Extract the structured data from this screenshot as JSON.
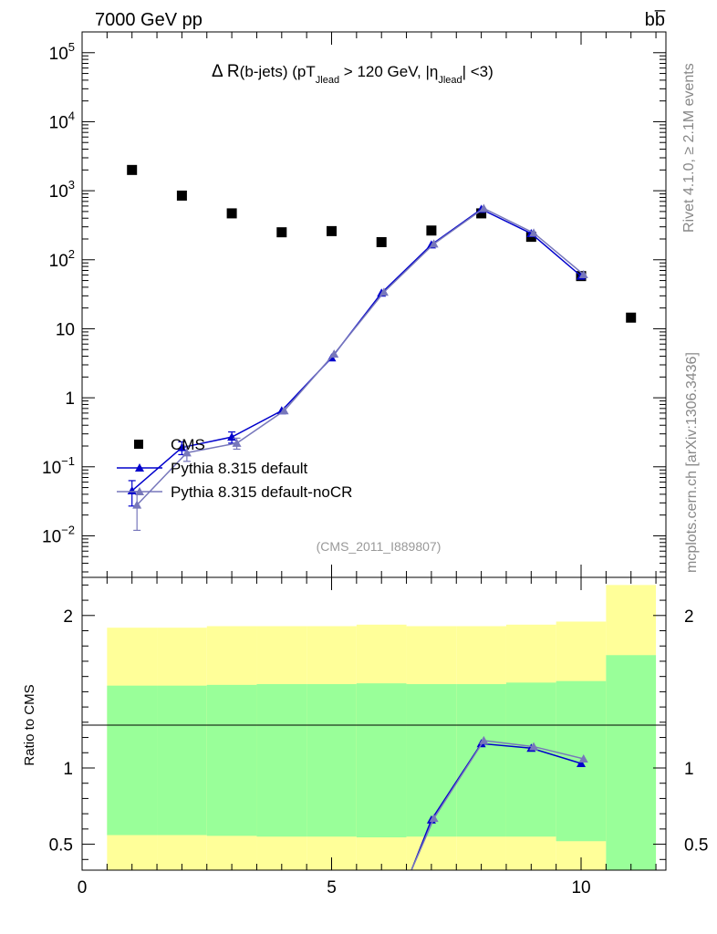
{
  "header": {
    "energy": "7000 GeV pp",
    "process": "bb̅"
  },
  "side_labels": {
    "rivet": "Rivet 4.1.0, ≥ 2.1M events",
    "source": "mcplots.cern.ch [arXiv:1306.3436]"
  },
  "colors": {
    "cms": "#000000",
    "pythia_default": "#0000cc",
    "pythia_nocr": "#7777bb",
    "band_inner": "#99ff99",
    "band_outer": "#ffff99"
  },
  "chart_data": [
    {
      "type": "scatter",
      "title": "Δ R(b-jets) (pT_Jlead > 120 GeV, |η_Jlead| <3)",
      "title_parts": {
        "main": "Δ R",
        "sub": "(b-jets) (pT",
        "s1": "Jlead",
        "mid": " >  120 GeV, |η",
        "s2": "Jlead",
        "end": "| <3)"
      },
      "analysis": "(CMS_2011_I889807)",
      "yscale": "log",
      "xlim": [
        0,
        11.7
      ],
      "ylim": [
        0.0025,
        200000
      ],
      "y_ticks": [
        {
          "v": 100000,
          "label": "10",
          "exp": "5"
        },
        {
          "v": 10000,
          "label": "10",
          "exp": "4"
        },
        {
          "v": 1000,
          "label": "10",
          "exp": "3"
        },
        {
          "v": 100,
          "label": "10",
          "exp": "2"
        },
        {
          "v": 10,
          "label": "10",
          "exp": ""
        },
        {
          "v": 1,
          "label": "1",
          "exp": ""
        },
        {
          "v": 0.1,
          "label": "10",
          "exp": "−1"
        },
        {
          "v": 0.01,
          "label": "10",
          "exp": "−2"
        }
      ],
      "legend": {
        "position": "bottom-left",
        "entries": [
          "CMS",
          "Pythia 8.315 default",
          "Pythia 8.315 default-noCR"
        ]
      },
      "series": [
        {
          "name": "CMS",
          "marker": "square",
          "x": [
            1,
            2,
            3,
            4,
            5,
            6,
            7,
            8,
            9,
            10,
            11
          ],
          "y": [
            2000,
            850,
            470,
            250,
            260,
            180,
            265,
            470,
            215,
            58,
            14.5
          ]
        },
        {
          "name": "Pythia 8.315 default",
          "marker": "triangle",
          "x": [
            1,
            2,
            3,
            4,
            5,
            6,
            7,
            8,
            9,
            10
          ],
          "y": [
            0.045,
            0.19,
            0.27,
            0.65,
            3.8,
            33,
            165,
            540,
            240,
            58
          ],
          "yerr": [
            0.018,
            0.04,
            0.05,
            0,
            0,
            0,
            0,
            0,
            0,
            0
          ]
        },
        {
          "name": "Pythia 8.315 default-noCR",
          "marker": "triangle",
          "x": [
            1.1,
            2.1,
            3.1,
            4.05,
            5.05,
            6.05,
            7.05,
            8.05,
            9.05,
            10.05
          ],
          "y": [
            0.028,
            0.16,
            0.22,
            0.65,
            4.3,
            34,
            170,
            555,
            245,
            61
          ],
          "yerr": [
            0.016,
            0.04,
            0.04,
            0,
            0,
            0,
            0,
            0,
            0,
            0
          ]
        }
      ]
    },
    {
      "type": "line",
      "ylabel": "Ratio to CMS",
      "xlim": [
        0,
        11.7
      ],
      "ylim": [
        0.33,
        2.25
      ],
      "x_ticks": [
        0,
        5,
        10
      ],
      "y_ticks": [
        0.5,
        1,
        2
      ],
      "y_tick_labels": [
        "0.5",
        "1",
        "2"
      ],
      "bands": {
        "bins": [
          {
            "lo": 0.5,
            "hi": 1.5,
            "inner": [
              0.56,
              1.54
            ],
            "outer": [
              0.33,
              1.92
            ]
          },
          {
            "lo": 1.5,
            "hi": 2.5,
            "inner": [
              0.56,
              1.54
            ],
            "outer": [
              0.33,
              1.92
            ]
          },
          {
            "lo": 2.5,
            "hi": 3.5,
            "inner": [
              0.555,
              1.545
            ],
            "outer": [
              0.33,
              1.93
            ]
          },
          {
            "lo": 3.5,
            "hi": 4.5,
            "inner": [
              0.55,
              1.55
            ],
            "outer": [
              0.33,
              1.93
            ]
          },
          {
            "lo": 4.5,
            "hi": 5.5,
            "inner": [
              0.55,
              1.55
            ],
            "outer": [
              0.33,
              1.93
            ]
          },
          {
            "lo": 5.5,
            "hi": 6.5,
            "inner": [
              0.545,
              1.555
            ],
            "outer": [
              0.33,
              1.94
            ]
          },
          {
            "lo": 6.5,
            "hi": 7.5,
            "inner": [
              0.55,
              1.55
            ],
            "outer": [
              0.33,
              1.93
            ]
          },
          {
            "lo": 7.5,
            "hi": 8.5,
            "inner": [
              0.55,
              1.55
            ],
            "outer": [
              0.33,
              1.93
            ]
          },
          {
            "lo": 8.5,
            "hi": 9.5,
            "inner": [
              0.55,
              1.56
            ],
            "outer": [
              0.33,
              1.94
            ]
          },
          {
            "lo": 9.5,
            "hi": 10.5,
            "inner": [
              0.52,
              1.57
            ],
            "outer": [
              0.33,
              1.96
            ]
          },
          {
            "lo": 10.5,
            "hi": 11.5,
            "inner": [
              0.33,
              1.74
            ],
            "outer": [
              0.33,
              2.2
            ]
          }
        ]
      },
      "series": [
        {
          "name": "Pythia 8.315 default",
          "x": [
            6.6,
            7,
            8,
            9,
            10
          ],
          "y": [
            0.33,
            0.66,
            1.16,
            1.13,
            1.03
          ]
        },
        {
          "name": "Pythia 8.315 default-noCR",
          "x": [
            6.6,
            7.05,
            8.05,
            9.05,
            10.05
          ],
          "y": [
            0.33,
            0.67,
            1.18,
            1.14,
            1.06
          ]
        }
      ]
    }
  ]
}
